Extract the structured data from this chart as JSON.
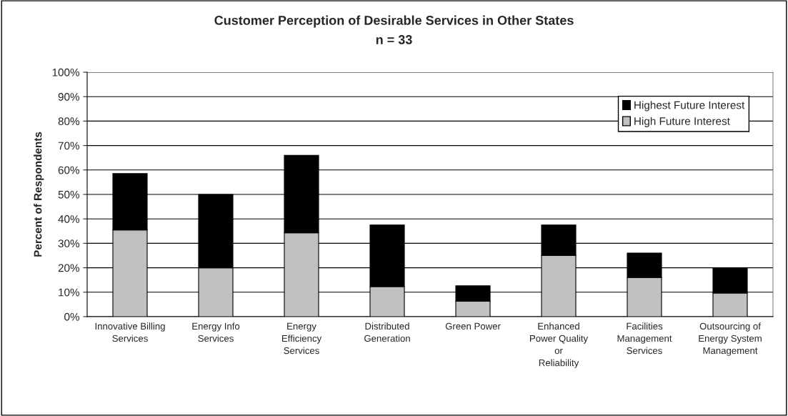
{
  "chart_data": {
    "type": "bar",
    "title": "Customer Perception of Desirable Services in Other States",
    "subtitle": "n = 33",
    "ylabel": "Percent of Respondents",
    "categories": [
      "Innovative Billing\nServices",
      "Energy Info\nServices",
      "Energy\nEfficiency\nServices",
      "Distributed\nGeneration",
      "Green Power",
      "Enhanced\nPower Quality\nor\nReliability",
      "Facilities\nManagement\nServices",
      "Outsourcing of\nEnergy System\nManagement"
    ],
    "series": [
      {
        "name": "High Future Interest",
        "color": "#c0c0c0",
        "values": [
          35.5,
          20,
          34.3,
          12.3,
          6.3,
          25,
          16,
          9.7
        ]
      },
      {
        "name": "Highest Future Interest",
        "color": "#000000",
        "values": [
          23,
          30,
          31.7,
          25.2,
          6.3,
          12.5,
          10,
          10
        ]
      }
    ],
    "stacked": true,
    "ylim": [
      0,
      100
    ],
    "yticks": [
      {
        "value": 0,
        "label": "0%"
      },
      {
        "value": 10,
        "label": "10%"
      },
      {
        "value": 20,
        "label": "20%"
      },
      {
        "value": 30,
        "label": "30%"
      },
      {
        "value": 40,
        "label": "40%"
      },
      {
        "value": 50,
        "label": "50%"
      },
      {
        "value": 60,
        "label": "60%"
      },
      {
        "value": 70,
        "label": "70%"
      },
      {
        "value": 80,
        "label": "80%"
      },
      {
        "value": 90,
        "label": "90%"
      },
      {
        "value": 100,
        "label": "100%"
      }
    ],
    "grid": "y",
    "legend": "top right"
  }
}
